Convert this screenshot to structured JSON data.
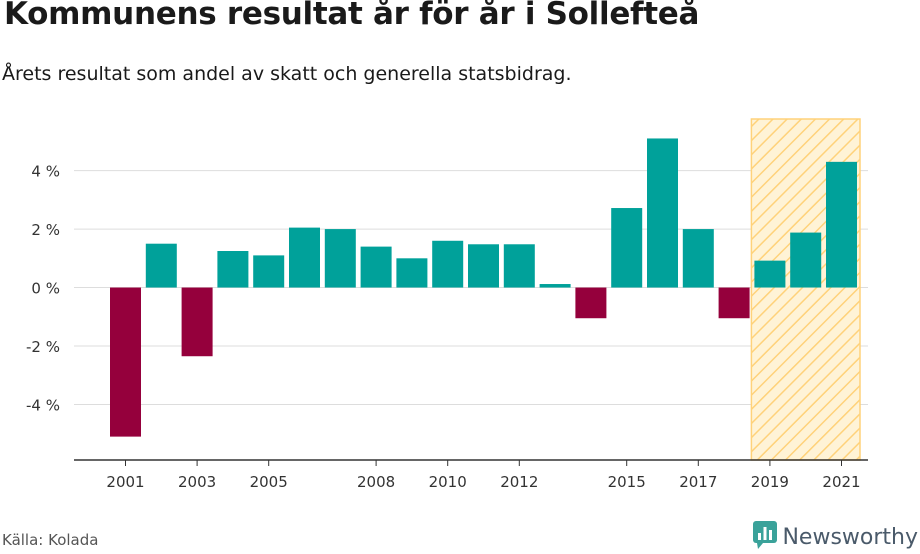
{
  "title": "Kommunens resultat år för år i Sollefteå",
  "subtitle": "Årets resultat som andel av skatt och generella statsbidrag.",
  "source": "Källa: Kolada",
  "brand": {
    "name": "Newsworthy",
    "icon": "newsworthy-bar-chart-icon"
  },
  "colors": {
    "positive": "#00a19a",
    "negative": "#95003c",
    "highlight_fill": "#fff3d6",
    "highlight_stroke": "#ffd27a",
    "grid": "#dddddd",
    "axis": "#333333",
    "brand": "#3aa29a"
  },
  "chart_data": {
    "type": "bar",
    "categories": [
      "2001",
      "2002",
      "2003",
      "2004",
      "2005",
      "2006",
      "2007",
      "2008",
      "2009",
      "2010",
      "2011",
      "2012",
      "2013",
      "2014",
      "2015",
      "2016",
      "2017",
      "2018",
      "2019",
      "2020",
      "2021"
    ],
    "values": [
      -5.1,
      1.5,
      -2.35,
      1.25,
      1.1,
      2.05,
      2.0,
      1.4,
      1.0,
      1.6,
      1.48,
      1.48,
      0.12,
      -1.05,
      2.72,
      5.1,
      2.0,
      -1.05,
      0.92,
      1.88,
      4.3
    ],
    "x_tick_labels": [
      "2001",
      "2003",
      "2005",
      "2008",
      "2010",
      "2012",
      "2015",
      "2017",
      "2019",
      "2021"
    ],
    "y_ticks": [
      -4,
      -2,
      0,
      2,
      4
    ],
    "y_tick_labels": [
      "-4 %",
      "-2 %",
      "0 %",
      "2 %",
      "4 %"
    ],
    "ylim": [
      -5.9,
      5.8
    ],
    "highlight_range": [
      "2019",
      "2021"
    ],
    "grid": true
  }
}
